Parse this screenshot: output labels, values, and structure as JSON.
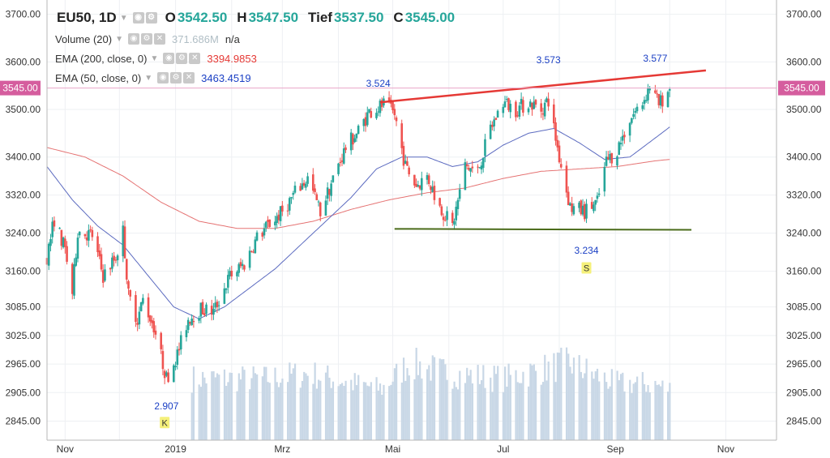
{
  "legend": {
    "symbol": "EU50, 1D",
    "open_label": "O",
    "open": "3542.50",
    "high_label": "H",
    "high": "3547.50",
    "low_label": "Tief",
    "low": "3537.50",
    "close_label": "C",
    "close": "3545.00",
    "volume_label": "Volume (20)",
    "volume_value": "371.686M",
    "volume_extra": "n/a",
    "ema200_label": "EMA (200, close, 0)",
    "ema200_value": "3394.9853",
    "ema50_label": "EMA (50, close, 0)",
    "ema50_value": "3463.4519"
  },
  "colors": {
    "up": "#26a69a",
    "down": "#ef5350",
    "ema200": "#e57373",
    "ema50": "#5c6bc0",
    "volume": "#c8d7e6",
    "trendline": "#e53935",
    "support": "#4a6b1a",
    "price_label_bg": "#d55d9e",
    "annotation": "#1a3fc4",
    "marker_bg": "#f5f07a"
  },
  "chart_data": {
    "type": "candlestick",
    "title": "EU50, 1D",
    "ylim": [
      2805,
      3730
    ],
    "y_ticks": [
      "3700.00",
      "3600.00",
      "3500.00",
      "3400.00",
      "3320.00",
      "3240.00",
      "3160.00",
      "3085.00",
      "3025.00",
      "2965.00",
      "2905.00",
      "2845.00"
    ],
    "x_tick_labels": [
      "Nov",
      "2019",
      "Mrz",
      "Mai",
      "Jul",
      "Sep",
      "Nov"
    ],
    "current_price_label": "3545.00",
    "x_range": [
      "2018-10-22",
      "2019-11-29"
    ],
    "price_path": [
      [
        "2018-10-22",
        3190
      ],
      [
        "2018-10-26",
        3270
      ],
      [
        "2018-11-01",
        3205
      ],
      [
        "2018-11-05",
        3115
      ],
      [
        "2018-11-08",
        3245
      ],
      [
        "2018-11-16",
        3235
      ],
      [
        "2018-11-22",
        3150
      ],
      [
        "2018-11-29",
        3190
      ],
      [
        "2018-12-03",
        3245
      ],
      [
        "2018-12-06",
        3110
      ],
      [
        "2018-12-11",
        3060
      ],
      [
        "2018-12-14",
        3100
      ],
      [
        "2018-12-20",
        3045
      ],
      [
        "2018-12-27",
        2935
      ],
      [
        "2019-01-02",
        2985
      ],
      [
        "2019-01-08",
        3060
      ],
      [
        "2019-01-15",
        3080
      ],
      [
        "2019-01-22",
        3075
      ],
      [
        "2019-01-31",
        3150
      ],
      [
        "2019-02-08",
        3175
      ],
      [
        "2019-02-15",
        3230
      ],
      [
        "2019-02-22",
        3260
      ],
      [
        "2019-03-01",
        3285
      ],
      [
        "2019-03-08",
        3325
      ],
      [
        "2019-03-15",
        3355
      ],
      [
        "2019-03-22",
        3285
      ],
      [
        "2019-03-28",
        3345
      ],
      [
        "2019-04-05",
        3420
      ],
      [
        "2019-04-12",
        3455
      ],
      [
        "2019-04-18",
        3495
      ],
      [
        "2019-04-26",
        3510
      ],
      [
        "2019-05-02",
        3490
      ],
      [
        "2019-05-08",
        3380
      ],
      [
        "2019-05-14",
        3340
      ],
      [
        "2019-05-20",
        3360
      ],
      [
        "2019-05-27",
        3295
      ],
      [
        "2019-06-03",
        3255
      ],
      [
        "2019-06-10",
        3380
      ],
      [
        "2019-06-17",
        3370
      ],
      [
        "2019-06-24",
        3460
      ],
      [
        "2019-07-01",
        3515
      ],
      [
        "2019-07-08",
        3500
      ],
      [
        "2019-07-15",
        3515
      ],
      [
        "2019-07-22",
        3500
      ],
      [
        "2019-07-26",
        3520
      ],
      [
        "2019-08-01",
        3400
      ],
      [
        "2019-08-07",
        3295
      ],
      [
        "2019-08-15",
        3285
      ],
      [
        "2019-08-22",
        3305
      ],
      [
        "2019-08-27",
        3390
      ],
      [
        "2019-09-02",
        3415
      ],
      [
        "2019-09-09",
        3480
      ],
      [
        "2019-09-16",
        3515
      ],
      [
        "2019-09-20",
        3550
      ],
      [
        "2019-09-25",
        3510
      ],
      [
        "2019-10-01",
        3545
      ]
    ],
    "ema50_path": [
      [
        "2018-10-22",
        3380
      ],
      [
        "2018-11-05",
        3310
      ],
      [
        "2018-11-19",
        3255
      ],
      [
        "2018-12-03",
        3215
      ],
      [
        "2018-12-17",
        3150
      ],
      [
        "2018-12-31",
        3085
      ],
      [
        "2019-01-14",
        3060
      ],
      [
        "2019-01-28",
        3085
      ],
      [
        "2019-02-11",
        3125
      ],
      [
        "2019-02-25",
        3165
      ],
      [
        "2019-03-11",
        3215
      ],
      [
        "2019-03-25",
        3265
      ],
      [
        "2019-04-08",
        3315
      ],
      [
        "2019-04-22",
        3375
      ],
      [
        "2019-05-06",
        3400
      ],
      [
        "2019-05-20",
        3400
      ],
      [
        "2019-06-03",
        3380
      ],
      [
        "2019-06-17",
        3390
      ],
      [
        "2019-07-01",
        3425
      ],
      [
        "2019-07-15",
        3450
      ],
      [
        "2019-07-29",
        3460
      ],
      [
        "2019-08-12",
        3430
      ],
      [
        "2019-08-26",
        3395
      ],
      [
        "2019-09-09",
        3400
      ],
      [
        "2019-09-23",
        3440
      ],
      [
        "2019-10-01",
        3463
      ]
    ],
    "ema200_path": [
      [
        "2018-10-22",
        3420
      ],
      [
        "2018-11-12",
        3400
      ],
      [
        "2018-12-03",
        3360
      ],
      [
        "2018-12-24",
        3305
      ],
      [
        "2019-01-14",
        3265
      ],
      [
        "2019-02-04",
        3250
      ],
      [
        "2019-02-25",
        3250
      ],
      [
        "2019-03-18",
        3265
      ],
      [
        "2019-04-08",
        3290
      ],
      [
        "2019-04-29",
        3310
      ],
      [
        "2019-05-20",
        3325
      ],
      [
        "2019-06-10",
        3335
      ],
      [
        "2019-07-01",
        3355
      ],
      [
        "2019-07-22",
        3370
      ],
      [
        "2019-08-12",
        3375
      ],
      [
        "2019-09-02",
        3380
      ],
      [
        "2019-09-23",
        3392
      ],
      [
        "2019-10-01",
        3395
      ]
    ],
    "volume_path": [
      [
        "2018-10-22",
        0
      ],
      [
        "2019-01-09",
        0
      ],
      [
        "2019-01-10",
        0.6
      ],
      [
        "2019-02-20",
        0.6
      ],
      [
        "2019-03-15",
        0.65
      ],
      [
        "2019-04-10",
        0.55
      ],
      [
        "2019-04-25",
        0.5
      ],
      [
        "2019-05-10",
        0.75
      ],
      [
        "2019-06-01",
        0.65
      ],
      [
        "2019-07-01",
        0.6
      ],
      [
        "2019-08-06",
        0.75
      ],
      [
        "2019-09-01",
        0.55
      ],
      [
        "2019-09-20",
        0.55
      ],
      [
        "2019-10-01",
        0.5
      ]
    ],
    "trendline_resistance": [
      [
        "2019-04-24",
        3515
      ],
      [
        "2019-10-21",
        3582
      ]
    ],
    "support_line": [
      [
        "2019-05-02",
        3249
      ],
      [
        "2019-10-13",
        3247
      ]
    ],
    "annotations": [
      {
        "text": "2.907",
        "date": "2018-12-27",
        "value": 2907
      },
      {
        "text": "3.524",
        "date": "2019-04-23",
        "value": 3524
      },
      {
        "text": "3.573",
        "date": "2019-07-26",
        "value": 3573
      },
      {
        "text": "3.234",
        "date": "2019-08-16",
        "value": 3234
      },
      {
        "text": "3.577",
        "date": "2019-09-23",
        "value": 3577
      }
    ],
    "markers": [
      {
        "text": "K",
        "date": "2018-12-26",
        "value": 2842
      },
      {
        "text": "S",
        "date": "2019-08-16",
        "value": 3167
      }
    ]
  }
}
